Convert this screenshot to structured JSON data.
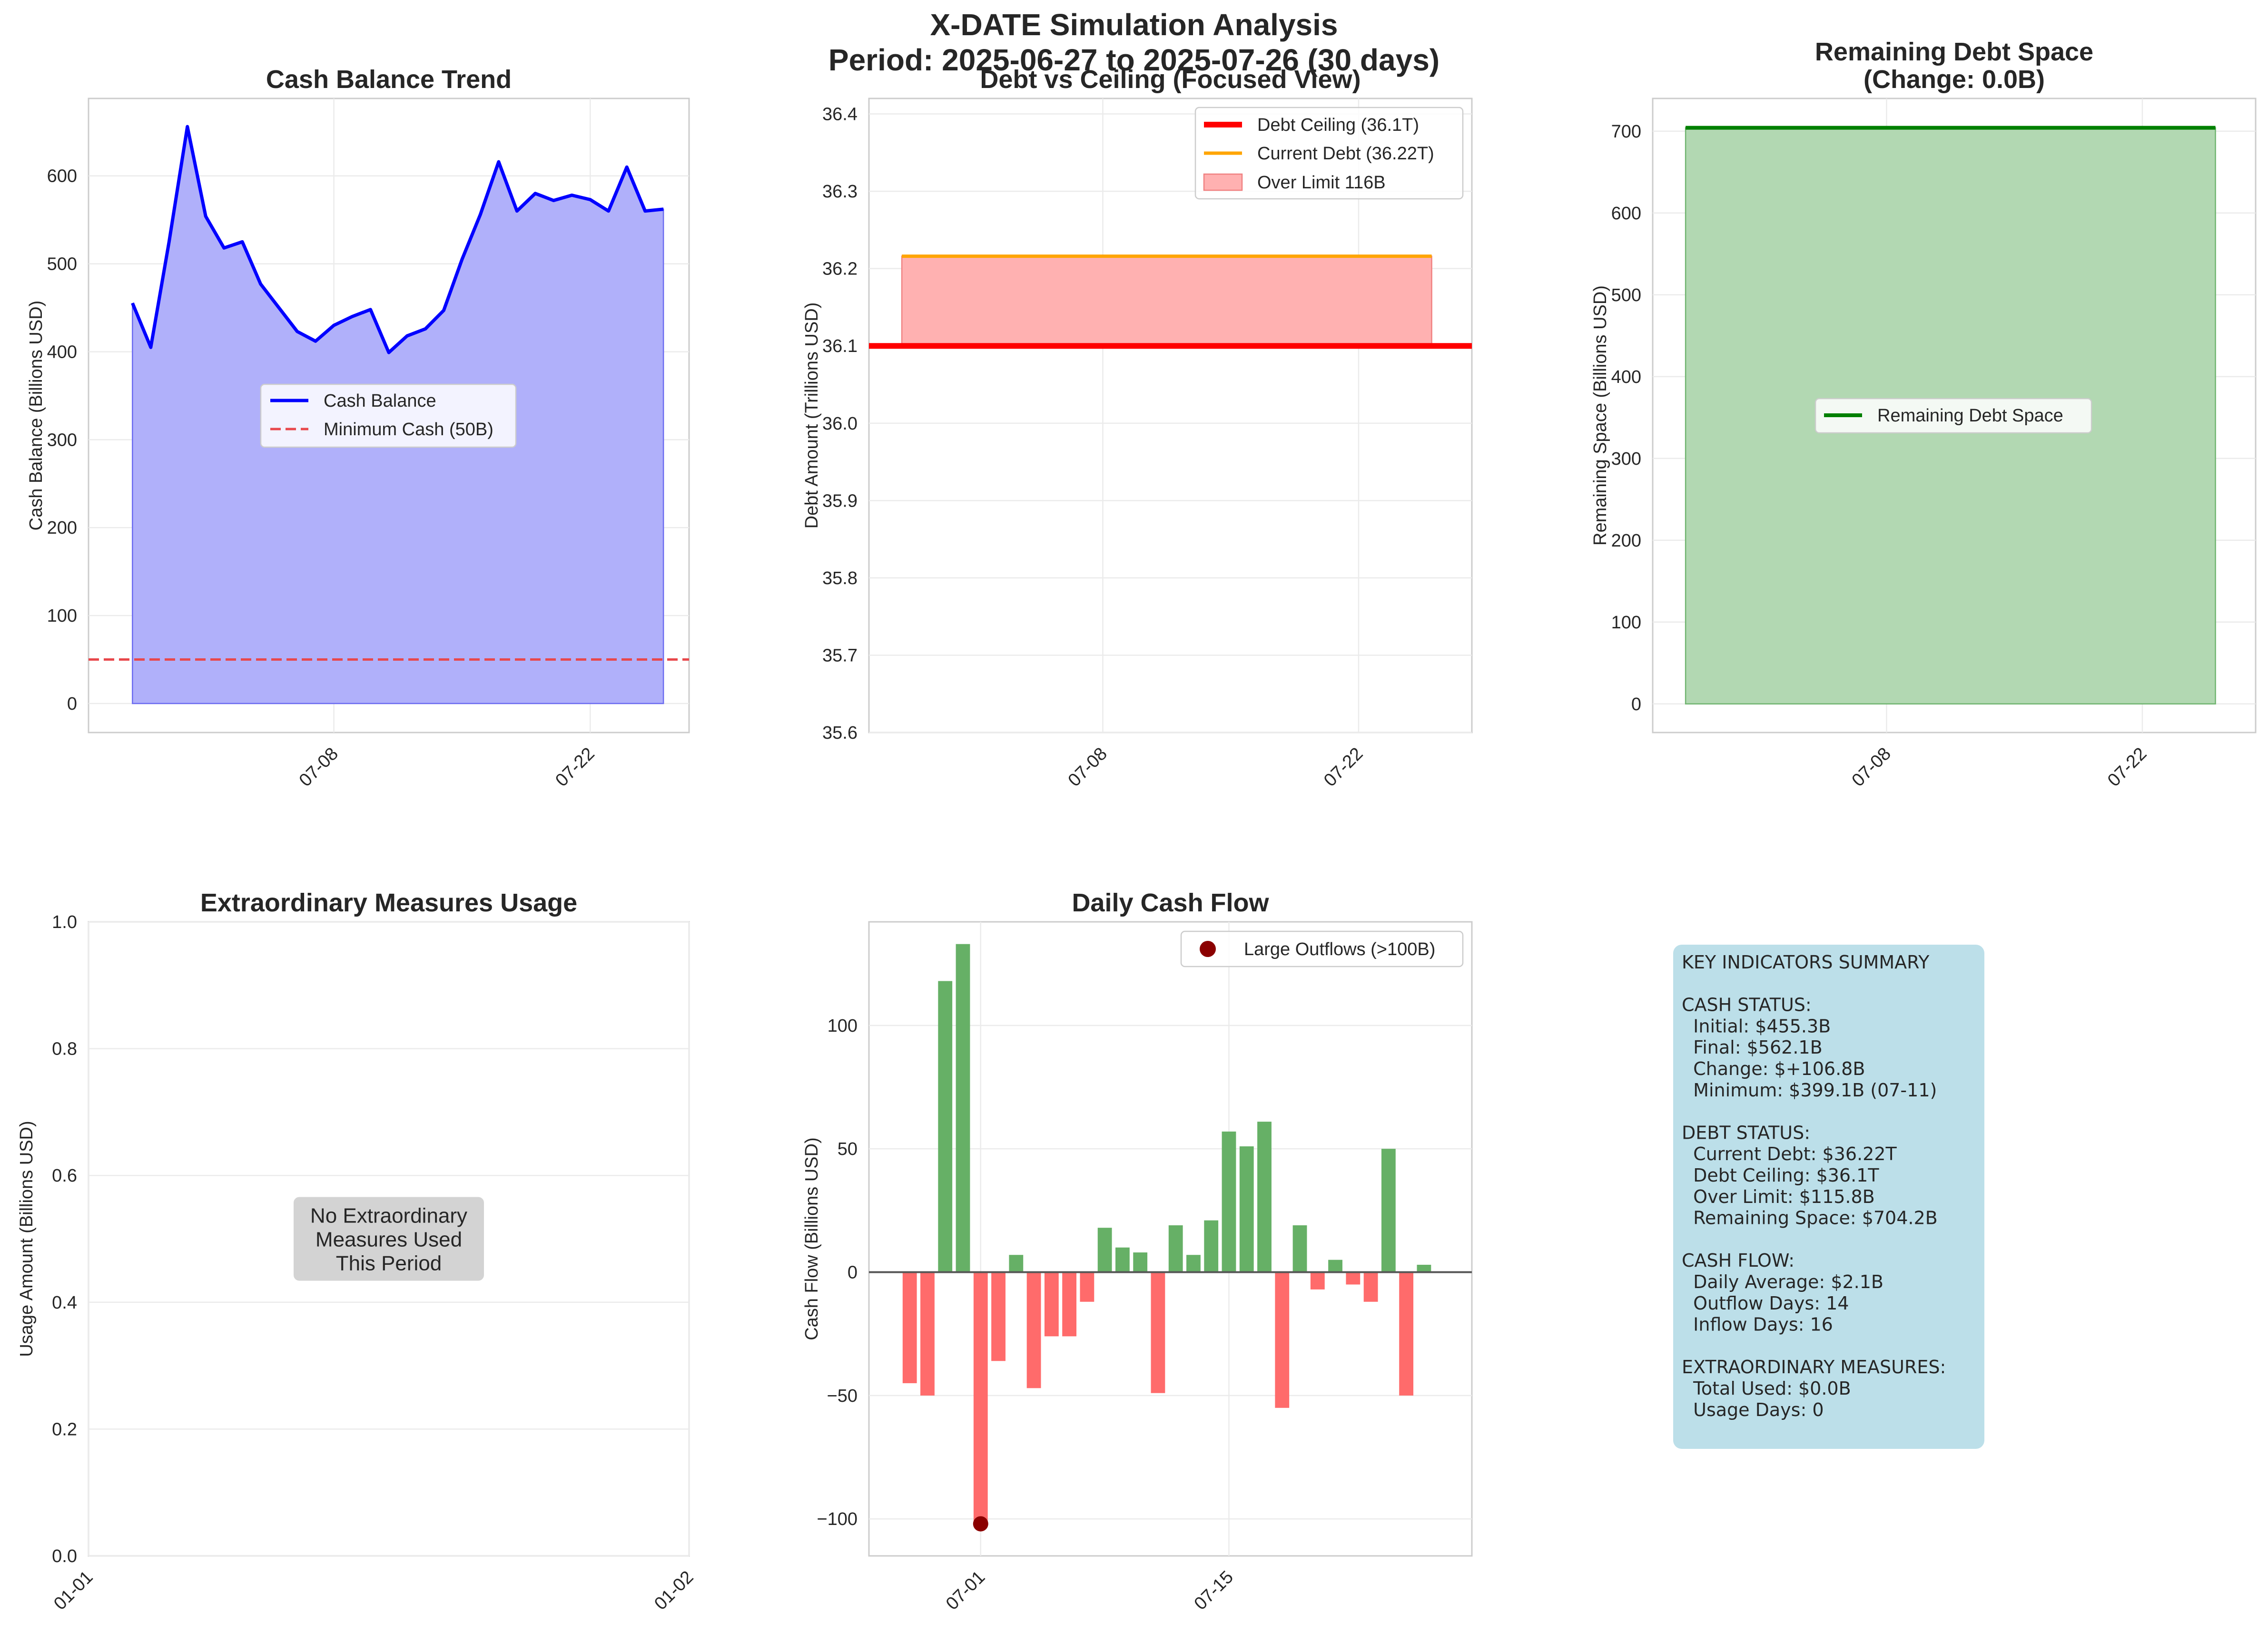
{
  "figure": {
    "title_line1": "X-DATE Simulation Analysis",
    "title_line2": "Period: 2025-06-27 to 2025-07-26 (30 days)"
  },
  "colors": {
    "cash_line": "#0000ff",
    "cash_fill": "#b0b0fa",
    "min_cash": "#e8474b",
    "ceiling": "#ff0000",
    "current_debt": "#ffa500",
    "over_limit_fill": "#ffb1b1",
    "remaining_line": "#008000",
    "remaining_fill": "#b2d8b2",
    "inflow_bar": "#66b066",
    "outflow_bar": "#ff6b6b",
    "large_outflow_marker": "#8b0000",
    "summary_box": "#bcdfe9",
    "no_measures_box": "#d3d3d3"
  },
  "chart_data": [
    {
      "id": "cash",
      "type": "area",
      "title": "Cash Balance Trend",
      "xlabel": "",
      "ylabel": "Cash Balance (Billions USD)",
      "x_start": "2025-06-27",
      "x": [
        "2025-06-27",
        "2025-06-28",
        "2025-06-29",
        "2025-06-30",
        "2025-07-01",
        "2025-07-02",
        "2025-07-03",
        "2025-07-04",
        "2025-07-05",
        "2025-07-06",
        "2025-07-07",
        "2025-07-08",
        "2025-07-09",
        "2025-07-10",
        "2025-07-11",
        "2025-07-12",
        "2025-07-13",
        "2025-07-14",
        "2025-07-15",
        "2025-07-16",
        "2025-07-17",
        "2025-07-18",
        "2025-07-19",
        "2025-07-20",
        "2025-07-21",
        "2025-07-22",
        "2025-07-23",
        "2025-07-24",
        "2025-07-25",
        "2025-07-26"
      ],
      "series": [
        {
          "name": "Cash Balance",
          "values": [
            455.3,
            405,
            525,
            656,
            554,
            518,
            525,
            477,
            450,
            423,
            412,
            430,
            440,
            448,
            399.1,
            418,
            426,
            447,
            505,
            556,
            616,
            560,
            580,
            572,
            578,
            573,
            560,
            610,
            560,
            562.1
          ]
        },
        {
          "name": "Minimum Cash (50B)",
          "constant": 50
        }
      ],
      "xticks": [
        {
          "label": "07-08",
          "date": "2025-07-08"
        },
        {
          "label": "07-22",
          "date": "2025-07-22"
        }
      ],
      "xlim": [
        "2025-06-25.6",
        "2025-07-27.4"
      ],
      "ylim": [
        -33,
        688
      ],
      "yticks": [
        0,
        100,
        200,
        300,
        400,
        500,
        600
      ],
      "legend": "center",
      "grid": true
    },
    {
      "id": "debt",
      "type": "line",
      "title": "Debt vs Ceiling (Focused View)",
      "xlabel": "",
      "ylabel": "Debt Amount (Trillions USD)",
      "x": [
        "2025-06-27",
        "2025-07-26"
      ],
      "series": [
        {
          "name": "Debt Ceiling (36.1T)",
          "constant": 36.1
        },
        {
          "name": "Current Debt (36.22T)",
          "constant": 36.216
        },
        {
          "name": "Over Limit 116B",
          "fill_between": [
            36.1,
            36.216
          ]
        }
      ],
      "xticks": [
        {
          "label": "07-08",
          "date": "2025-07-08"
        },
        {
          "label": "07-22",
          "date": "2025-07-22"
        }
      ],
      "ylim": [
        35.6,
        36.42
      ],
      "yticks": [
        35.6,
        35.7,
        35.8,
        35.9,
        36.0,
        36.1,
        36.2,
        36.3,
        36.4
      ],
      "legend": "top-right",
      "grid": true
    },
    {
      "id": "remaining",
      "type": "area",
      "title_line1": "Remaining Debt Space",
      "title_line2": "(Change: 0.0B)",
      "xlabel": "",
      "ylabel": "Remaining Space (Billions USD)",
      "x": [
        "2025-06-27",
        "2025-07-26"
      ],
      "series": [
        {
          "name": "Remaining Debt Space",
          "constant": 704.2
        }
      ],
      "xticks": [
        {
          "label": "07-08",
          "date": "2025-07-08"
        },
        {
          "label": "07-22",
          "date": "2025-07-22"
        }
      ],
      "ylim": [
        -35,
        740
      ],
      "yticks": [
        0,
        100,
        200,
        300,
        400,
        500,
        600,
        700
      ],
      "legend": "center",
      "grid": true
    },
    {
      "id": "measures",
      "type": "line",
      "title": "Extraordinary Measures Usage",
      "xlabel": "",
      "ylabel": "Usage Amount (Billions USD)",
      "series": [],
      "xticks": [
        {
          "label": "01-01"
        },
        {
          "label": "01-02"
        }
      ],
      "ylim": [
        0,
        1
      ],
      "yticks": [
        "0.0",
        "0.2",
        "0.4",
        "0.6",
        "0.8",
        "1.0"
      ],
      "annotation": [
        "No Extraordinary",
        "Measures Used",
        "This Period"
      ],
      "grid": true
    },
    {
      "id": "flow",
      "type": "bar",
      "title": "Daily Cash Flow",
      "xlabel": "",
      "ylabel": "Cash Flow (Billions USD)",
      "x": [
        "2025-06-27",
        "2025-06-28",
        "2025-06-29",
        "2025-06-30",
        "2025-07-01",
        "2025-07-02",
        "2025-07-03",
        "2025-07-04",
        "2025-07-05",
        "2025-07-06",
        "2025-07-07",
        "2025-07-08",
        "2025-07-09",
        "2025-07-10",
        "2025-07-11",
        "2025-07-12",
        "2025-07-13",
        "2025-07-14",
        "2025-07-15",
        "2025-07-16",
        "2025-07-17",
        "2025-07-18",
        "2025-07-19",
        "2025-07-20",
        "2025-07-21",
        "2025-07-22",
        "2025-07-23",
        "2025-07-24",
        "2025-07-25",
        "2025-07-26"
      ],
      "values": [
        -45,
        -50,
        118,
        133,
        -102,
        -36,
        7,
        -47,
        -26,
        -26,
        -12,
        18,
        10,
        8,
        -49,
        19,
        7,
        21,
        57,
        51,
        61,
        -55,
        19,
        -7,
        5,
        -5,
        -12,
        50,
        -50,
        3
      ],
      "series": [
        {
          "name": "Large Outflows (>100B)",
          "x": [
            "2025-07-01"
          ],
          "values": [
            -102
          ]
        }
      ],
      "xticks": [
        {
          "label": "07-01",
          "date": "2025-07-01"
        },
        {
          "label": "07-15",
          "date": "2025-07-15"
        }
      ],
      "ylim": [
        -115,
        142
      ],
      "yticks": [
        -100,
        -50,
        0,
        50,
        100
      ],
      "yticklabels": [
        "−100",
        "−50",
        "0",
        "50",
        "100"
      ],
      "legend": "top-right",
      "grid": true
    }
  ],
  "summary": {
    "lines": [
      "KEY INDICATORS SUMMARY",
      "",
      "CASH STATUS:",
      "  Initial: $455.3B",
      "  Final: $562.1B",
      "  Change: $+106.8B",
      "  Minimum: $399.1B (07-11)",
      "",
      "DEBT STATUS:",
      "  Current Debt: $36.22T",
      "  Debt Ceiling: $36.1T",
      "  Over Limit: $115.8B",
      "  Remaining Space: $704.2B",
      "",
      "CASH FLOW:",
      "  Daily Average: $2.1B",
      "  Outflow Days: 14",
      "  Inflow Days: 16",
      "",
      "EXTRAORDINARY MEASURES:",
      "  Total Used: $0.0B",
      "  Usage Days: 0"
    ]
  }
}
